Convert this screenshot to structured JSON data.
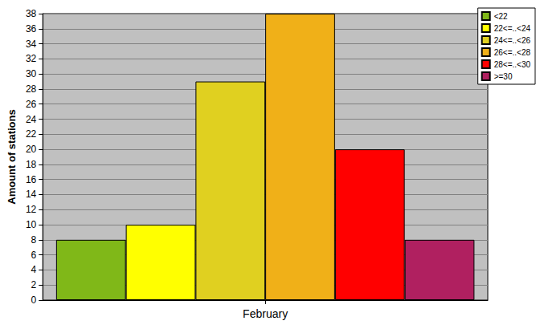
{
  "chart_data": {
    "type": "bar",
    "ylabel": "Amount of stations",
    "categories": [
      "February"
    ],
    "series": [
      {
        "name": "<22",
        "color": "#80b818",
        "values": [
          8
        ]
      },
      {
        "name": "22<=..<24",
        "color": "#ffff00",
        "values": [
          10
        ]
      },
      {
        "name": "24<=..<26",
        "color": "#e0d020",
        "values": [
          29
        ]
      },
      {
        "name": "26<=..<28",
        "color": "#f0b018",
        "values": [
          38
        ]
      },
      {
        "name": "28<=..<30",
        "color": "#ff0000",
        "values": [
          20
        ]
      },
      {
        "name": ">=30",
        "color": "#b02060",
        "values": [
          8
        ]
      }
    ],
    "ylim": [
      0,
      38
    ],
    "yticks": [
      0,
      2,
      4,
      6,
      8,
      10,
      12,
      14,
      16,
      18,
      20,
      22,
      24,
      26,
      28,
      30,
      32,
      34,
      36,
      38
    ],
    "grid": true,
    "legend": "upper right"
  }
}
